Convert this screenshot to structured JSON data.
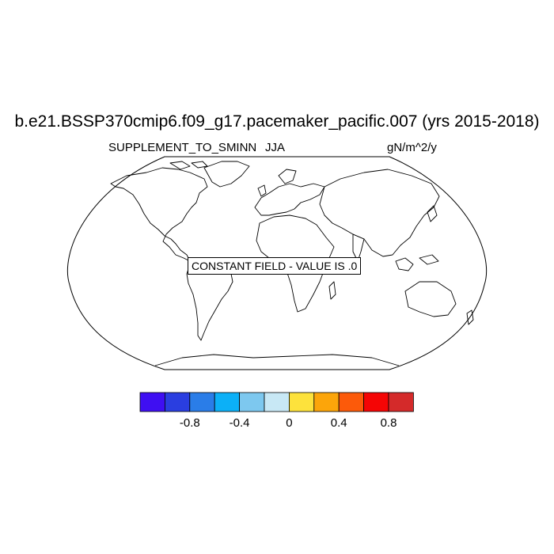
{
  "title": "b.e21.BSSP370cmip6.f09_g17.pacemaker_pacific.007 (yrs 2015-2018)",
  "subtitle_left": "SUPPLEMENT_TO_SMINN",
  "subtitle_center": "JJA",
  "subtitle_right": "gN/m^2/y",
  "annotation": "CONSTANT FIELD - VALUE IS .0",
  "colorbar": {
    "colors": [
      "#3f0ff2",
      "#2a3ee0",
      "#2a7de8",
      "#0cb0f7",
      "#7dc8ef",
      "#c8e8f5",
      "#fde23c",
      "#fca50a",
      "#fc5a0a",
      "#f50505",
      "#d42a2a"
    ],
    "tick_labels": [
      "-0.8",
      "-0.4",
      "0",
      "0.4",
      "0.8"
    ]
  }
}
